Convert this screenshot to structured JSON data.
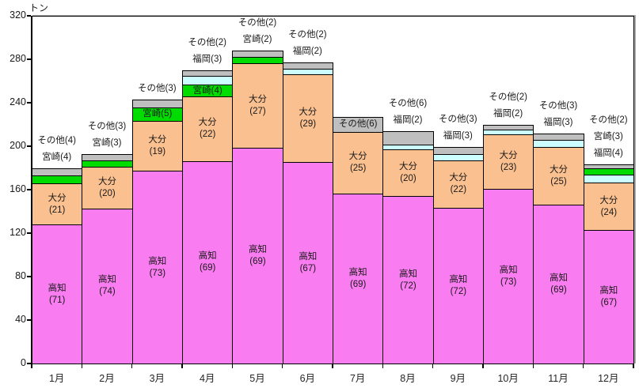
{
  "chart_data": {
    "type": "bar",
    "stacked": true,
    "title": "",
    "unit_label": "トン",
    "xlabel": "",
    "ylabel": "トン",
    "ylim": [
      0,
      320
    ],
    "yticks": [
      0,
      40,
      80,
      120,
      160,
      200,
      240,
      280,
      320
    ],
    "grid": false,
    "legend": "none",
    "categories": [
      "1月",
      "2月",
      "3月",
      "4月",
      "5月",
      "6月",
      "7月",
      "8月",
      "9月",
      "10月",
      "11月",
      "12月"
    ],
    "series_names": [
      "高知",
      "大分",
      "宮崎",
      "福岡",
      "その他"
    ],
    "colors": {
      "高知": "#F97CF0",
      "大分": "#FAC090",
      "宮崎": "#00DB00",
      "福岡": "#CCFFFF",
      "その他": "#BFBFBF",
      "border": "#000000"
    },
    "value_semantics": "numbers in parentheses are percent shares; bar heights are tons (totals estimated from gridlines)",
    "months": [
      {
        "month": "1月",
        "total_tons_est": 180,
        "segments": [
          {
            "name": "高知",
            "pct": 71,
            "inside": "two"
          },
          {
            "name": "大分",
            "pct": 21,
            "inside": "two"
          },
          {
            "name": "宮崎",
            "pct": 4
          },
          {
            "name": "その他",
            "pct": 4
          }
        ],
        "labels_above": [
          "その他(4)",
          "宮崎(4)"
        ]
      },
      {
        "month": "2月",
        "total_tons_est": 193,
        "segments": [
          {
            "name": "高知",
            "pct": 74,
            "inside": "two"
          },
          {
            "name": "大分",
            "pct": 20,
            "inside": "two"
          },
          {
            "name": "宮崎",
            "pct": 3
          },
          {
            "name": "その他",
            "pct": 3
          }
        ],
        "labels_above": [
          "その他(3)",
          "宮崎(3)"
        ]
      },
      {
        "month": "3月",
        "total_tons_est": 243,
        "segments": [
          {
            "name": "高知",
            "pct": 73,
            "inside": "two"
          },
          {
            "name": "大分",
            "pct": 19,
            "inside": "two"
          },
          {
            "name": "宮崎",
            "pct": 5,
            "inside": "one"
          },
          {
            "name": "その他",
            "pct": 3
          }
        ],
        "labels_above": [
          "その他(3)"
        ]
      },
      {
        "month": "4月",
        "total_tons_est": 270,
        "segments": [
          {
            "name": "高知",
            "pct": 69,
            "inside": "two"
          },
          {
            "name": "大分",
            "pct": 22,
            "inside": "two"
          },
          {
            "name": "宮崎",
            "pct": 4,
            "inside": "one"
          },
          {
            "name": "福岡",
            "pct": 3
          },
          {
            "name": "その他",
            "pct": 2
          }
        ],
        "labels_above": [
          "その他(2)",
          "福岡(3)"
        ]
      },
      {
        "month": "5月",
        "total_tons_est": 288,
        "segments": [
          {
            "name": "高知",
            "pct": 69,
            "inside": "two"
          },
          {
            "name": "大分",
            "pct": 27,
            "inside": "two"
          },
          {
            "name": "宮崎",
            "pct": 2
          },
          {
            "name": "その他",
            "pct": 2
          }
        ],
        "labels_above": [
          "その他(2)",
          "宮崎(2)"
        ]
      },
      {
        "month": "6月",
        "total_tons_est": 277,
        "segments": [
          {
            "name": "高知",
            "pct": 67,
            "inside": "two"
          },
          {
            "name": "大分",
            "pct": 29,
            "inside": "two"
          },
          {
            "name": "福岡",
            "pct": 2
          },
          {
            "name": "その他",
            "pct": 2
          }
        ],
        "labels_above": [
          "その他(2)",
          "福岡(2)"
        ]
      },
      {
        "month": "7月",
        "total_tons_est": 227,
        "segments": [
          {
            "name": "高知",
            "pct": 69,
            "inside": "two"
          },
          {
            "name": "大分",
            "pct": 25,
            "inside": "two"
          },
          {
            "name": "その他",
            "pct": 6,
            "inside": "one"
          }
        ],
        "labels_above": []
      },
      {
        "month": "8月",
        "total_tons_est": 214,
        "segments": [
          {
            "name": "高知",
            "pct": 72,
            "inside": "two"
          },
          {
            "name": "大分",
            "pct": 20,
            "inside": "two"
          },
          {
            "name": "福岡",
            "pct": 2
          },
          {
            "name": "その他",
            "pct": 6
          }
        ],
        "labels_above": [
          "その他(6)",
          "福岡(2)"
        ]
      },
      {
        "month": "9月",
        "total_tons_est": 199,
        "segments": [
          {
            "name": "高知",
            "pct": 72,
            "inside": "two"
          },
          {
            "name": "大分",
            "pct": 22,
            "inside": "two"
          },
          {
            "name": "福岡",
            "pct": 3
          },
          {
            "name": "その他",
            "pct": 3
          }
        ],
        "labels_above": [
          "その他(3)",
          "福岡(3)"
        ]
      },
      {
        "month": "10月",
        "total_tons_est": 220,
        "segments": [
          {
            "name": "高知",
            "pct": 73,
            "inside": "two"
          },
          {
            "name": "大分",
            "pct": 23,
            "inside": "two"
          },
          {
            "name": "福岡",
            "pct": 2
          },
          {
            "name": "その他",
            "pct": 2
          }
        ],
        "labels_above": [
          "その他(2)",
          "福岡(2)"
        ]
      },
      {
        "month": "11月",
        "total_tons_est": 212,
        "segments": [
          {
            "name": "高知",
            "pct": 69,
            "inside": "two"
          },
          {
            "name": "大分",
            "pct": 25,
            "inside": "two"
          },
          {
            "name": "福岡",
            "pct": 3
          },
          {
            "name": "その他",
            "pct": 3
          }
        ],
        "labels_above": [
          "その他(3)",
          "福岡(3)"
        ]
      },
      {
        "month": "12月",
        "total_tons_est": 183,
        "segments": [
          {
            "name": "高知",
            "pct": 67,
            "inside": "two"
          },
          {
            "name": "大分",
            "pct": 24,
            "inside": "two"
          },
          {
            "name": "福岡",
            "pct": 4
          },
          {
            "name": "宮崎",
            "pct": 3
          },
          {
            "name": "その他",
            "pct": 2
          }
        ],
        "labels_above": [
          "その他(2)",
          "宮崎(3)",
          "福岡(4)"
        ]
      }
    ]
  }
}
